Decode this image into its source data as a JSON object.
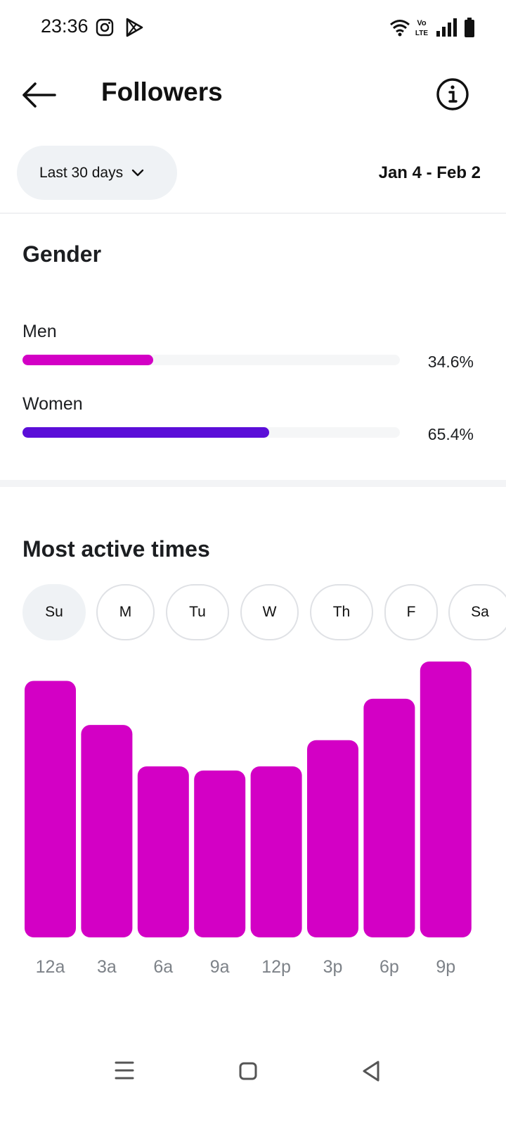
{
  "status_bar": {
    "time": "23:36",
    "icons": [
      "instagram-icon",
      "play-store-icon",
      "wifi-icon",
      "volte-icon",
      "signal-icon",
      "battery-icon"
    ]
  },
  "header": {
    "title": "Followers",
    "back_icon": "arrow-left-icon",
    "info_icon": "info-icon"
  },
  "filter": {
    "range_label": "Last 30 days",
    "date_range": "Jan 4 - Feb 2"
  },
  "gender": {
    "title": "Gender",
    "items": [
      {
        "label": "Men",
        "percent_label": "34.6%",
        "value": 34.6,
        "color": "#d300c5"
      },
      {
        "label": "Women",
        "percent_label": "65.4%",
        "value": 65.4,
        "color": "#5b0ed8"
      }
    ]
  },
  "active_times": {
    "title": "Most active times",
    "days": [
      "Su",
      "M",
      "Tu",
      "W",
      "Th",
      "F",
      "Sa"
    ],
    "selected_day": "Su"
  },
  "chart_data": {
    "type": "bar",
    "categories": [
      "12a",
      "3a",
      "6a",
      "9a",
      "12p",
      "3p",
      "6p",
      "9p"
    ],
    "values": [
      93,
      77,
      62,
      60.5,
      62,
      71.5,
      86.5,
      100
    ],
    "ylim": [
      0,
      100
    ],
    "color": "#d300c5",
    "grid": false
  },
  "nav_bar": {
    "icons": [
      "menu-icon",
      "home-square-icon",
      "back-triangle-icon"
    ]
  },
  "colors": {
    "accent_magenta": "#d300c5",
    "accent_purple": "#5b0ed8",
    "pill_bg": "#eff2f5"
  }
}
